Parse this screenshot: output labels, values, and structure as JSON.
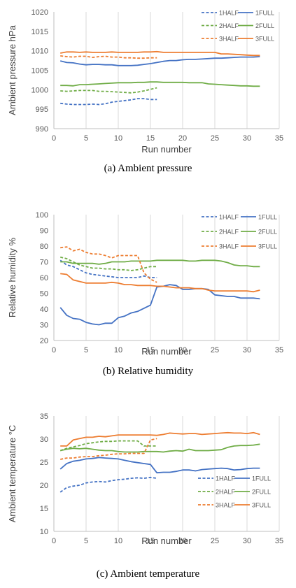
{
  "panels": [
    {
      "caption": "(a)  Ambient  pressure"
    },
    {
      "caption": "(b)  Relative  humidity"
    },
    {
      "caption": "(c)  Ambient  temperature"
    }
  ],
  "colors": {
    "series1": "#4472c4",
    "series2": "#70ad47",
    "series3": "#ed7d31",
    "grid": "#d9d9d9"
  },
  "chart_data": [
    {
      "type": "line",
      "title": "",
      "xlabel": "Run number",
      "ylabel": "Ambient pressure   hPa",
      "xlim": [
        0,
        35
      ],
      "ylim": [
        990,
        1020
      ],
      "xticks": [
        0,
        5,
        10,
        15,
        20,
        25,
        30,
        35
      ],
      "yticks": [
        990,
        995,
        1000,
        1005,
        1010,
        1015,
        1020
      ],
      "grid": "vertical",
      "legend": "top-right",
      "series": [
        {
          "name": "1HALF",
          "style": "dashed",
          "color": "#4472c4",
          "x": [
            1,
            2,
            3,
            4,
            5,
            6,
            7,
            8,
            9,
            10,
            11,
            12,
            13,
            14,
            15,
            16
          ],
          "y": [
            996.5,
            996.3,
            996.2,
            996.2,
            996.2,
            996.3,
            996.2,
            996.4,
            996.8,
            997.0,
            997.2,
            997.4,
            997.7,
            997.7,
            997.5,
            997.5
          ]
        },
        {
          "name": "1FULL",
          "style": "solid",
          "color": "#4472c4",
          "x": [
            1,
            2,
            3,
            4,
            5,
            6,
            7,
            8,
            9,
            10,
            11,
            12,
            13,
            14,
            15,
            16,
            17,
            18,
            19,
            20,
            21,
            22,
            23,
            24,
            25,
            26,
            27,
            28,
            29,
            30,
            31,
            32
          ],
          "y": [
            1007.4,
            1007.0,
            1006.9,
            1006.6,
            1006.4,
            1006.5,
            1006.5,
            1006.4,
            1006.4,
            1006.2,
            1006.2,
            1006.2,
            1006.3,
            1006.5,
            1006.7,
            1007.0,
            1007.3,
            1007.5,
            1007.5,
            1007.7,
            1007.8,
            1007.8,
            1007.9,
            1008.0,
            1008.1,
            1008.1,
            1008.2,
            1008.3,
            1008.4,
            1008.4,
            1008.4,
            1008.5
          ]
        },
        {
          "name": "2HALF",
          "style": "dashed",
          "color": "#70ad47",
          "x": [
            1,
            2,
            3,
            4,
            5,
            6,
            7,
            8,
            9,
            10,
            11,
            12,
            13,
            14,
            15,
            16
          ],
          "y": [
            999.7,
            999.6,
            999.7,
            999.8,
            999.8,
            999.8,
            999.6,
            999.6,
            999.5,
            999.4,
            999.3,
            999.2,
            999.4,
            999.7,
            1000.1,
            1000.5
          ]
        },
        {
          "name": "2FULL",
          "style": "solid",
          "color": "#70ad47",
          "x": [
            1,
            2,
            3,
            4,
            5,
            6,
            7,
            8,
            9,
            10,
            11,
            12,
            13,
            14,
            15,
            16,
            17,
            18,
            19,
            20,
            21,
            22,
            23,
            24,
            25,
            26,
            27,
            28,
            29,
            30,
            31,
            32
          ],
          "y": [
            1001.1,
            1001.1,
            1001.0,
            1001.3,
            1001.3,
            1001.4,
            1001.5,
            1001.6,
            1001.7,
            1001.8,
            1001.8,
            1001.8,
            1001.9,
            1001.9,
            1002.0,
            1002.0,
            1001.9,
            1001.9,
            1001.9,
            1001.9,
            1001.8,
            1001.8,
            1001.8,
            1001.5,
            1001.4,
            1001.3,
            1001.2,
            1001.1,
            1001.0,
            1001.0,
            1000.9,
            1000.9
          ]
        },
        {
          "name": "3HALF",
          "style": "dashed",
          "color": "#ed7d31",
          "x": [
            1,
            2,
            3,
            4,
            5,
            6,
            7,
            8,
            9,
            10,
            11,
            12,
            13,
            14,
            15,
            16
          ],
          "y": [
            1008.7,
            1008.5,
            1008.4,
            1008.6,
            1008.6,
            1008.3,
            1008.5,
            1008.6,
            1008.4,
            1008.4,
            1008.2,
            1008.2,
            1008.1,
            1008.1,
            1008.2,
            1008.2
          ]
        },
        {
          "name": "3FULL",
          "style": "solid",
          "color": "#ed7d31",
          "x": [
            1,
            2,
            3,
            4,
            5,
            6,
            7,
            8,
            9,
            10,
            11,
            12,
            13,
            14,
            15,
            16,
            17,
            18,
            19,
            20,
            21,
            22,
            23,
            24,
            25,
            26,
            27,
            28,
            29,
            30,
            31,
            32
          ],
          "y": [
            1009.4,
            1009.7,
            1009.7,
            1009.6,
            1009.7,
            1009.6,
            1009.6,
            1009.6,
            1009.7,
            1009.6,
            1009.6,
            1009.6,
            1009.6,
            1009.7,
            1009.7,
            1009.8,
            1009.6,
            1009.6,
            1009.6,
            1009.6,
            1009.6,
            1009.6,
            1009.6,
            1009.6,
            1009.6,
            1009.2,
            1009.2,
            1009.1,
            1009.0,
            1008.9,
            1008.8,
            1008.8
          ]
        }
      ]
    },
    {
      "type": "line",
      "title": "",
      "xlabel": "Run number",
      "ylabel": "Relative humidity   %",
      "xlim": [
        0,
        35
      ],
      "ylim": [
        20,
        100
      ],
      "xticks": [
        0,
        5,
        10,
        15,
        20,
        25,
        30,
        35
      ],
      "yticks": [
        20,
        30,
        40,
        50,
        60,
        70,
        80,
        90,
        100
      ],
      "grid": "vertical",
      "legend": "top-right",
      "series": [
        {
          "name": "1HALF",
          "style": "dashed",
          "color": "#4472c4",
          "x": [
            1,
            2,
            3,
            4,
            5,
            6,
            7,
            8,
            9,
            10,
            11,
            12,
            13,
            14,
            15,
            16
          ],
          "y": [
            71,
            68,
            67,
            65,
            63,
            62,
            61.5,
            61,
            60.5,
            60,
            60,
            60,
            60,
            61,
            60,
            60
          ]
        },
        {
          "name": "1FULL",
          "style": "solid",
          "color": "#4472c4",
          "x": [
            1,
            2,
            3,
            4,
            5,
            6,
            7,
            8,
            9,
            10,
            11,
            12,
            13,
            14,
            15,
            16,
            17,
            18,
            19,
            20,
            21,
            22,
            23,
            24,
            25,
            26,
            27,
            28,
            29,
            30,
            31,
            32
          ],
          "y": [
            41,
            36,
            34,
            33.5,
            31.5,
            30.5,
            30,
            31,
            31,
            34.5,
            35.5,
            37.5,
            38.5,
            40.5,
            42.5,
            54,
            54.5,
            55.5,
            55,
            52.5,
            52.5,
            53,
            53,
            52.5,
            49,
            48.5,
            48,
            48,
            47,
            47,
            47,
            46.5
          ]
        },
        {
          "name": "2HALF",
          "style": "dashed",
          "color": "#70ad47",
          "x": [
            1,
            2,
            3,
            4,
            5,
            6,
            7,
            8,
            9,
            10,
            11,
            12,
            13,
            14,
            15,
            16
          ],
          "y": [
            73,
            72,
            70,
            68,
            67,
            66,
            66,
            65.5,
            65.5,
            65,
            65,
            64.5,
            65,
            66,
            67,
            67
          ]
        },
        {
          "name": "2FULL",
          "style": "solid",
          "color": "#70ad47",
          "x": [
            1,
            2,
            3,
            4,
            5,
            6,
            7,
            8,
            9,
            10,
            11,
            12,
            13,
            14,
            15,
            16,
            17,
            18,
            19,
            20,
            21,
            22,
            23,
            24,
            25,
            26,
            27,
            28,
            29,
            30,
            31,
            32
          ],
          "y": [
            70,
            70,
            69,
            69,
            69,
            69,
            68.5,
            69,
            70,
            70,
            70,
            70.5,
            70.5,
            70.5,
            70.5,
            71,
            71,
            71,
            71,
            71,
            70.5,
            70.5,
            71,
            71,
            71,
            70.5,
            69.5,
            68,
            67.5,
            67.5,
            67,
            67
          ]
        },
        {
          "name": "3HALF",
          "style": "dashed",
          "color": "#ed7d31",
          "x": [
            1,
            2,
            3,
            4,
            5,
            6,
            7,
            8,
            9,
            10,
            11,
            12,
            13,
            14,
            15,
            16
          ],
          "y": [
            79,
            79.5,
            77,
            78,
            76,
            75,
            75,
            74,
            72.5,
            74,
            74,
            74,
            74,
            63,
            59,
            57
          ]
        },
        {
          "name": "3FULL",
          "style": "solid",
          "color": "#ed7d31",
          "x": [
            1,
            2,
            3,
            4,
            5,
            6,
            7,
            8,
            9,
            10,
            11,
            12,
            13,
            14,
            15,
            16,
            17,
            18,
            19,
            20,
            21,
            22,
            23,
            24,
            25,
            26,
            27,
            28,
            29,
            30,
            31,
            32
          ],
          "y": [
            62.5,
            62,
            58.5,
            57.5,
            56.5,
            56.5,
            56.5,
            56.5,
            57,
            56.5,
            55.5,
            55.5,
            55,
            55,
            55,
            54.5,
            54.5,
            54,
            53.5,
            53.5,
            53.5,
            53,
            53,
            52,
            51.5,
            51.5,
            51.5,
            51.5,
            51.5,
            51.5,
            51,
            52
          ]
        }
      ]
    },
    {
      "type": "line",
      "title": "",
      "xlabel": "Run number",
      "ylabel": "Ambient temperature °C",
      "xlim": [
        0,
        35
      ],
      "ylim": [
        10,
        35
      ],
      "xticks": [
        0,
        5,
        10,
        15,
        20,
        25,
        30,
        35
      ],
      "yticks": [
        10,
        15,
        20,
        25,
        30,
        35
      ],
      "grid": "vertical",
      "legend": "bottom-right",
      "series": [
        {
          "name": "1HALF",
          "style": "dashed",
          "color": "#4472c4",
          "x": [
            1,
            2,
            3,
            4,
            5,
            6,
            7,
            8,
            9,
            10,
            11,
            12,
            13,
            14,
            15,
            16
          ],
          "y": [
            18.5,
            19.5,
            19.8,
            20,
            20.5,
            20.7,
            20.8,
            20.7,
            21,
            21.2,
            21.3,
            21.5,
            21.6,
            21.5,
            21.7,
            21.5
          ]
        },
        {
          "name": "1FULL",
          "style": "solid",
          "color": "#4472c4",
          "x": [
            1,
            2,
            3,
            4,
            5,
            6,
            7,
            8,
            9,
            10,
            11,
            12,
            13,
            14,
            15,
            16,
            17,
            18,
            19,
            20,
            21,
            22,
            23,
            24,
            25,
            26,
            27,
            28,
            29,
            30,
            31,
            32
          ],
          "y": [
            23.5,
            24.7,
            25.2,
            25.4,
            25.7,
            25.8,
            26,
            25.9,
            25.8,
            25.7,
            25.4,
            25.1,
            24.9,
            24.7,
            24.5,
            22.7,
            22.8,
            22.8,
            23,
            23.3,
            23.3,
            23.1,
            23.4,
            23.5,
            23.6,
            23.7,
            23.6,
            23.3,
            23.4,
            23.6,
            23.7,
            23.7
          ]
        },
        {
          "name": "2HALF",
          "style": "dashed",
          "color": "#70ad47",
          "x": [
            1,
            2,
            3,
            4,
            5,
            6,
            7,
            8,
            9,
            10,
            11,
            12,
            13,
            14,
            15,
            16
          ],
          "y": [
            27.5,
            28,
            28.3,
            28.6,
            29,
            29.2,
            29.4,
            29.5,
            29.5,
            29.6,
            29.6,
            29.6,
            29.6,
            28.5,
            28.5,
            28.5
          ]
        },
        {
          "name": "2FULL",
          "style": "solid",
          "color": "#70ad47",
          "x": [
            1,
            2,
            3,
            4,
            5,
            6,
            7,
            8,
            9,
            10,
            11,
            12,
            13,
            14,
            15,
            16,
            17,
            18,
            19,
            20,
            21,
            22,
            23,
            24,
            25,
            26,
            27,
            28,
            29,
            30,
            31,
            32
          ],
          "y": [
            27.5,
            27.8,
            28,
            27.9,
            28,
            27.8,
            27.6,
            27.5,
            27.5,
            27.3,
            27.2,
            27.2,
            27.2,
            27.3,
            27.3,
            27.3,
            27.2,
            27.4,
            27.5,
            27.4,
            27.8,
            27.5,
            27.5,
            27.5,
            27.6,
            27.7,
            28.2,
            28.5,
            28.6,
            28.6,
            28.7,
            28.9
          ]
        },
        {
          "name": "3HALF",
          "style": "dashed",
          "color": "#ed7d31",
          "x": [
            1,
            2,
            3,
            4,
            5,
            6,
            7,
            8,
            9,
            10,
            11,
            12,
            13,
            14,
            15,
            16
          ],
          "y": [
            25.6,
            25.9,
            25.9,
            26.1,
            26.2,
            26.2,
            26.4,
            26.5,
            26.7,
            26.8,
            26.8,
            26.9,
            26.9,
            26.9,
            29.8,
            30.1
          ]
        },
        {
          "name": "3FULL",
          "style": "solid",
          "color": "#ed7d31",
          "x": [
            1,
            2,
            3,
            4,
            5,
            6,
            7,
            8,
            9,
            10,
            11,
            12,
            13,
            14,
            15,
            16,
            17,
            18,
            19,
            20,
            21,
            22,
            23,
            24,
            25,
            26,
            27,
            28,
            29,
            30,
            31,
            32
          ],
          "y": [
            28.5,
            28.5,
            29.8,
            30.1,
            30.4,
            30.4,
            30.6,
            30.5,
            30.7,
            30.9,
            30.9,
            30.9,
            30.9,
            30.9,
            30.9,
            30.8,
            31,
            31.3,
            31.2,
            31.1,
            31.2,
            31.2,
            31,
            31.1,
            31.2,
            31.3,
            31.4,
            31.3,
            31.3,
            31.2,
            31.4,
            31
          ]
        }
      ]
    }
  ]
}
